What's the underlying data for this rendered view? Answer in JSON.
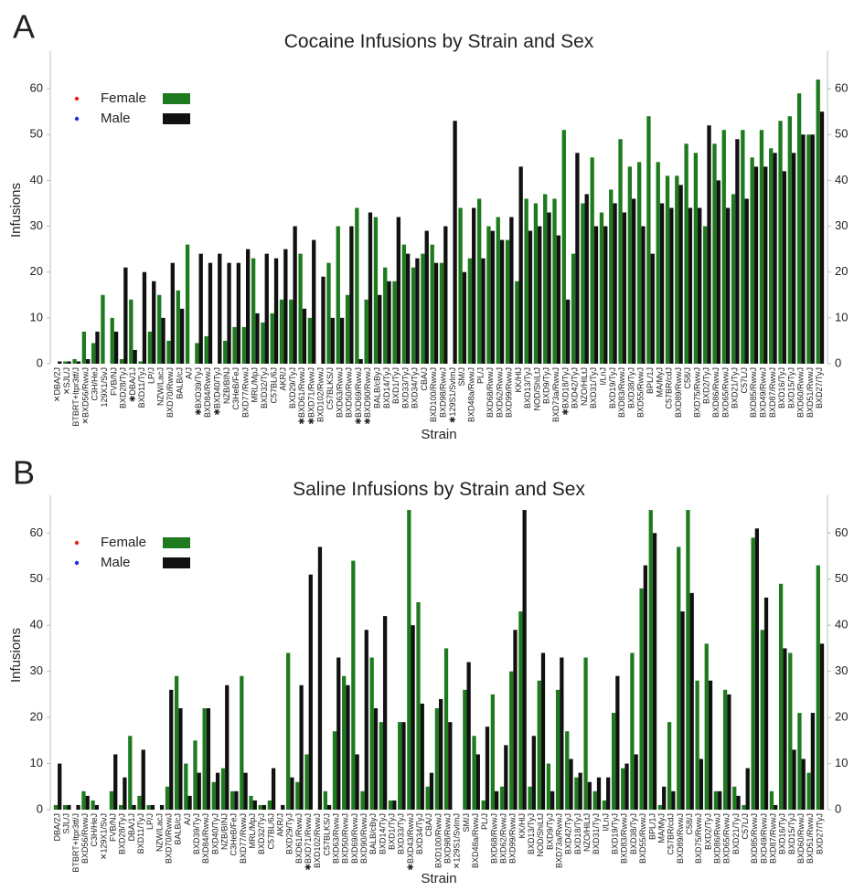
{
  "chart_data": [
    {
      "type": "bar",
      "panel_label": "A",
      "title": "Cocaine Infusions by Strain and Sex",
      "xlabel": "Strain",
      "ylabel": "Infusions",
      "categories": [
        "✕DBA/2J",
        "✕SJL/J",
        "BTBRT+Itpr3tf/J",
        "✕BXD56/RwwJ",
        "C3H/HeJ",
        "129X1/SvJ",
        "FVB/NJ",
        "BXD28/TyJ",
        "✱DBA/1J",
        "BXD11/TyJ",
        "LP/J",
        "NZW/LacJ",
        "BXD70/RwwJ",
        "BALB/cJ",
        "A/J",
        "✱BXD39/TyJ",
        "BXD84/RwwJ",
        "✱BXD40/TyJ",
        "NZB/BINJ",
        "C3HeB/FeJ",
        "BXD77/RwwJ",
        "MRL/MpJ",
        "BXD32/TyJ",
        "C57BL/6J",
        "AKR/J",
        "BXD29/TyJ",
        "✱BXD61/RwwJ",
        "✱BXD71/RwwJ",
        "BXD102/RwwJ",
        "C57BLKS/J",
        "BXD63/RwwJ",
        "BXD50/RwwJ",
        "✱BXD69/RwwJ",
        "✱BXD90/RwwJ",
        "BALB/cByJ",
        "BXD14/TyJ",
        "BXD1/TyJ",
        "BXD33/TyJ",
        "BXD34/TyJ",
        "CBA/J",
        "BXD100/RwwJ",
        "BXD98/RwwJ",
        "✱129S1/SvImJ",
        "SM/J",
        "BXD48a/RwwJ",
        "PL/J",
        "BXD68/RwwJ",
        "BXD62/RwwJ",
        "BXD99/RwwJ",
        "KK/HlJ",
        "BXD13/TyJ",
        "NOD/ShiLtJ",
        "BXD9/TyJ",
        "BXD73a/RwwJ",
        "✱BXD18/TyJ",
        "BXD42/TyJ",
        "NZO/HlLtJ",
        "BXD31/TyJ",
        "I/LnJ",
        "BXD19/TyJ",
        "BXD83/RwwJ",
        "BXD38/TyJ",
        "BXD55/RwwJ",
        "BPL/1J",
        "MA/MyJ",
        "C57BR/cdJ",
        "BXD89/RwwJ",
        "C58/J",
        "BXD75/RwwJ",
        "BXD2/TyJ",
        "BXD86/RwwJ",
        "BXD65/RwwJ",
        "BXD21/TyJ",
        "C57L/J",
        "BXD85/RwwJ",
        "BXD49/RwwJ",
        "BXD87/RwwJ",
        "BXD16/TyJ",
        "BXD15/TyJ",
        "BXD60/RwwJ",
        "BXD51/RwwJ",
        "BXD27/TyJ"
      ],
      "series": [
        {
          "name": "Female",
          "color": "#1e7a1e",
          "dot_color": "#e8231c",
          "values": [
            0,
            0.5,
            1,
            7,
            4.5,
            15,
            10,
            1,
            14,
            0.5,
            7,
            15,
            5,
            16,
            26,
            4.5,
            6,
            0,
            5,
            8,
            8,
            23,
            9,
            11,
            14,
            14,
            24,
            10,
            0,
            22,
            30,
            15,
            34,
            14,
            32,
            21,
            18,
            26,
            21,
            24,
            26,
            22,
            0,
            34,
            23,
            36,
            30,
            32,
            27,
            18,
            36,
            35,
            37,
            36,
            51,
            24,
            35,
            45,
            33,
            38,
            49,
            43,
            44,
            54,
            44,
            41,
            41,
            48,
            46,
            30,
            48,
            51,
            37,
            51,
            45,
            51,
            47,
            53,
            54,
            59,
            50,
            62
          ]
        },
        {
          "name": "Male",
          "color": "#111111",
          "dot_color": "#1f2fe0",
          "values": [
            0.5,
            0.5,
            0.5,
            1,
            7,
            0,
            7,
            21,
            3,
            20,
            18,
            10,
            22,
            12,
            0,
            24,
            22,
            24,
            22,
            22,
            25,
            11,
            24,
            23,
            25,
            30,
            12,
            27,
            19,
            10,
            10,
            30,
            1,
            33,
            15,
            18,
            32,
            24,
            23,
            29,
            22,
            30,
            53,
            20,
            34,
            23,
            29,
            27,
            32,
            43,
            29,
            30,
            33,
            28,
            14,
            46,
            37,
            30,
            30,
            35,
            33,
            36,
            30,
            24,
            35,
            34,
            39,
            34,
            34,
            52,
            40,
            34,
            49,
            36,
            43,
            43,
            46,
            42,
            46,
            50,
            50,
            55
          ]
        }
      ],
      "ylim": [
        0,
        67
      ],
      "yticks": [
        0,
        10,
        20,
        30,
        40,
        50,
        60
      ]
    },
    {
      "type": "bar",
      "panel_label": "B",
      "title": "Saline Infusions by Strain and Sex",
      "xlabel": "Strain",
      "ylabel": "Infusions",
      "categories": [
        "DBA/2J",
        "SJL/J",
        "BTBRT+Itpr3tf/J",
        "BXD56/RwwJ",
        "C3H/HeJ",
        "✕129X1/SvJ",
        "FVB/NJ",
        "BXD28/TyJ",
        "DBA/1J",
        "BXD11/TyJ",
        "LP/J",
        "NZW/LacJ",
        "BXD70/RwwJ",
        "BALB/cJ",
        "A/J",
        "BXD39/TyJ",
        "BXD84/RwwJ",
        "BXD40/TyJ",
        "NZB/BINJ",
        "C3HeB/FeJ",
        "BXD77/RwwJ",
        "MRL/MpJ",
        "BXD32/TyJ",
        "C57BL/6J",
        "AKR/J",
        "BXD29/TyJ",
        "BXD61/RwwJ",
        "✱BXD71/RwwJ",
        "BXD102/RwwJ",
        "C57BLKS/J",
        "BXD63/RwwJ",
        "BXD50/RwwJ",
        "BXD69/RwwJ",
        "BXD90/RwwJ",
        "BALB/cByJ",
        "BXD14/TyJ",
        "BXD1/TyJ",
        "BXD33/TyJ",
        "✱BXD43/RwwJ",
        "BXD34/TyJ",
        "CBA/J",
        "BXD100/RwwJ",
        "BXD98/RwwJ",
        "✕129S1/SvImJ",
        "SM/J",
        "BXD48a/RwwJ",
        "PL/J",
        "BXD68/RwwJ",
        "BXD62/RwwJ",
        "BXD99/RwwJ",
        "KK/HlJ",
        "BXD13/TyJ",
        "NOD/ShiLtJ",
        "BXD9/TyJ",
        "BXD73a/RwwJ",
        "BXD42/TyJ",
        "BXD18/TyJ",
        "NZO/HlLtJ",
        "BXD31/TyJ",
        "I/LnJ",
        "BXD19/TyJ",
        "BXD83/RwwJ",
        "BXD38/TyJ",
        "BXD55/RwwJ",
        "BPL/1J",
        "MA/MyJ",
        "C57BR/cdJ",
        "BXD89/RwwJ",
        "C58/J",
        "BXD75/RwwJ",
        "BXD2/TyJ",
        "BXD86/RwwJ",
        "BXD65/RwwJ",
        "BXD21/TyJ",
        "C57L/J",
        "BXD85/RwwJ",
        "BXD49/RwwJ",
        "BXD87/RwwJ",
        "BXD16/TyJ",
        "BXD15/TyJ",
        "BXD60/RwwJ",
        "BXD51/RwwJ",
        "BXD27/TyJ"
      ],
      "series": [
        {
          "name": "Female",
          "color": "#1e7a1e",
          "dot_color": "#e8231c",
          "values": [
            1,
            1,
            0,
            4,
            2,
            0,
            4,
            1,
            16,
            3,
            1,
            0,
            5,
            29,
            10,
            15,
            22,
            6,
            9,
            4,
            29,
            3,
            1,
            2,
            0,
            34,
            6,
            12,
            0,
            4,
            17,
            29,
            54,
            4,
            33,
            19,
            2,
            19,
            65,
            45,
            5,
            22,
            35,
            0,
            26,
            16,
            2,
            25,
            5,
            30,
            43,
            5,
            28,
            10,
            26,
            17,
            7,
            33,
            4,
            2,
            21,
            9,
            34,
            48,
            65,
            1,
            19,
            57,
            65,
            28,
            36,
            4,
            26,
            5,
            1,
            59,
            39,
            4,
            49,
            34,
            21,
            8,
            53
          ]
        },
        {
          "name": "Male",
          "color": "#111111",
          "dot_color": "#1f2fe0",
          "values": [
            10,
            1,
            1,
            3,
            1,
            0,
            12,
            7,
            1,
            13,
            1,
            1,
            26,
            22,
            3,
            8,
            22,
            8,
            27,
            4,
            8,
            2,
            1,
            9,
            1,
            7,
            27,
            51,
            57,
            1,
            33,
            27,
            12,
            39,
            22,
            42,
            2,
            19,
            40,
            23,
            8,
            24,
            19,
            0,
            32,
            12,
            18,
            4,
            14,
            39,
            65,
            16,
            34,
            4,
            33,
            11,
            8,
            6,
            7,
            7,
            29,
            10,
            12,
            53,
            60,
            5,
            4,
            43,
            47,
            11,
            28,
            4,
            25,
            3,
            9,
            61,
            46,
            1,
            35,
            13,
            11,
            21,
            36
          ]
        }
      ],
      "ylim": [
        0,
        67
      ],
      "yticks": [
        0,
        10,
        20,
        30,
        40,
        50,
        60
      ]
    }
  ]
}
